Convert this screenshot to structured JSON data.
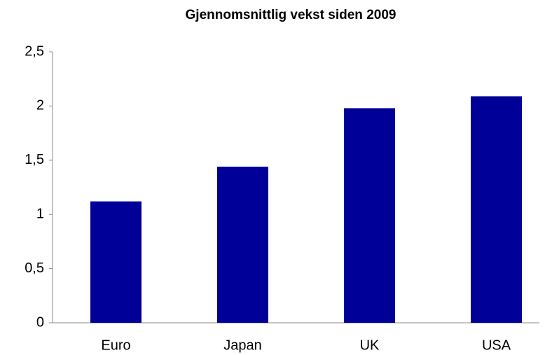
{
  "chart_data": {
    "type": "bar",
    "title": "Gjennomsnittlig vekst siden 2009",
    "categories": [
      "Euro",
      "Japan",
      "UK",
      "USA"
    ],
    "values": [
      1.12,
      1.44,
      1.98,
      2.09
    ],
    "color": "#000099",
    "ylim": [
      0,
      2.5
    ],
    "yticks": [
      0,
      {
        "value": 0.5,
        "label": "0,5"
      },
      1,
      {
        "value": 1.5,
        "label": "1,5"
      },
      2,
      {
        "value": 2.5,
        "label": "2,5"
      }
    ],
    "grid": false
  }
}
